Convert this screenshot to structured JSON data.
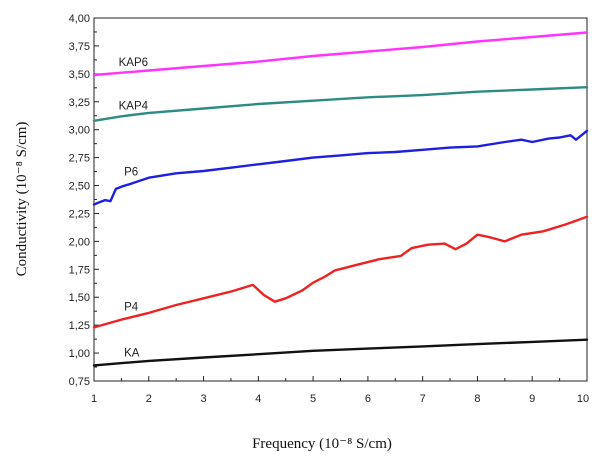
{
  "chart_data": {
    "type": "line",
    "title": "",
    "xlabel": "Frequency (10⁻⁸ S/cm)",
    "ylabel": "Conductivity (10⁻⁸ S/cm)",
    "xlim": [
      1,
      10
    ],
    "ylim": [
      0.75,
      4.0
    ],
    "x_ticks": [
      "1",
      "2",
      "3",
      "4",
      "5",
      "6",
      "7",
      "8",
      "9",
      "10"
    ],
    "y_ticks": [
      "0,75",
      "1,00",
      "1,25",
      "1,50",
      "1,75",
      "2,00",
      "2,25",
      "2,50",
      "2,75",
      "3,00",
      "3,25",
      "3,50",
      "3,75",
      "4,00"
    ],
    "grid": false,
    "series": [
      {
        "name": "KAP6",
        "color": "#ff33ff",
        "x": [
          1,
          2,
          3,
          4,
          5,
          6,
          7,
          8,
          9,
          10
        ],
        "y": [
          3.49,
          3.53,
          3.57,
          3.61,
          3.66,
          3.7,
          3.74,
          3.79,
          3.83,
          3.87
        ]
      },
      {
        "name": "KAP4",
        "color": "#2e8b84",
        "x": [
          1,
          1.5,
          2,
          3,
          4,
          5,
          6,
          7,
          8,
          9,
          10
        ],
        "y": [
          3.08,
          3.12,
          3.15,
          3.19,
          3.23,
          3.26,
          3.29,
          3.31,
          3.34,
          3.36,
          3.38
        ]
      },
      {
        "name": "P6",
        "color": "#1f1fe0",
        "x": [
          1,
          1.1,
          1.2,
          1.3,
          1.4,
          1.5,
          1.7,
          2,
          2.5,
          3,
          3.5,
          4,
          4.5,
          5,
          5.5,
          6,
          6.5,
          7,
          7.5,
          8,
          8.5,
          8.8,
          9,
          9.3,
          9.5,
          9.7,
          9.8,
          10
        ],
        "y": [
          2.33,
          2.35,
          2.37,
          2.36,
          2.47,
          2.49,
          2.52,
          2.57,
          2.61,
          2.63,
          2.66,
          2.69,
          2.72,
          2.75,
          2.77,
          2.79,
          2.8,
          2.82,
          2.84,
          2.85,
          2.89,
          2.91,
          2.89,
          2.92,
          2.93,
          2.95,
          2.91,
          2.99
        ]
      },
      {
        "name": "P4",
        "color": "#ee2222",
        "x": [
          1,
          1.5,
          2,
          2.5,
          3,
          3.5,
          3.9,
          4.1,
          4.3,
          4.5,
          4.8,
          5,
          5.2,
          5.4,
          5.8,
          6.2,
          6.6,
          6.8,
          7.1,
          7.4,
          7.6,
          7.8,
          8,
          8.2,
          8.5,
          8.8,
          9.2,
          9.6,
          10
        ],
        "y": [
          1.23,
          1.3,
          1.36,
          1.43,
          1.49,
          1.55,
          1.61,
          1.52,
          1.46,
          1.49,
          1.56,
          1.63,
          1.68,
          1.74,
          1.79,
          1.84,
          1.87,
          1.94,
          1.97,
          1.98,
          1.93,
          1.98,
          2.06,
          2.04,
          2.0,
          2.06,
          2.09,
          2.15,
          2.22
        ]
      },
      {
        "name": "KA",
        "color": "#111111",
        "x": [
          1,
          2,
          3,
          4,
          5,
          6,
          7,
          8,
          9,
          10
        ],
        "y": [
          0.89,
          0.93,
          0.96,
          0.99,
          1.02,
          1.04,
          1.06,
          1.08,
          1.1,
          1.12
        ]
      }
    ],
    "annotations": [
      {
        "text": "KAP6",
        "x": 1.45,
        "y": 3.57
      },
      {
        "text": "KAP4",
        "x": 1.45,
        "y": 3.18
      },
      {
        "text": "P6",
        "x": 1.55,
        "y": 2.59
      },
      {
        "text": "P4",
        "x": 1.55,
        "y": 1.38
      },
      {
        "text": "KA",
        "x": 1.55,
        "y": 0.97
      }
    ]
  }
}
